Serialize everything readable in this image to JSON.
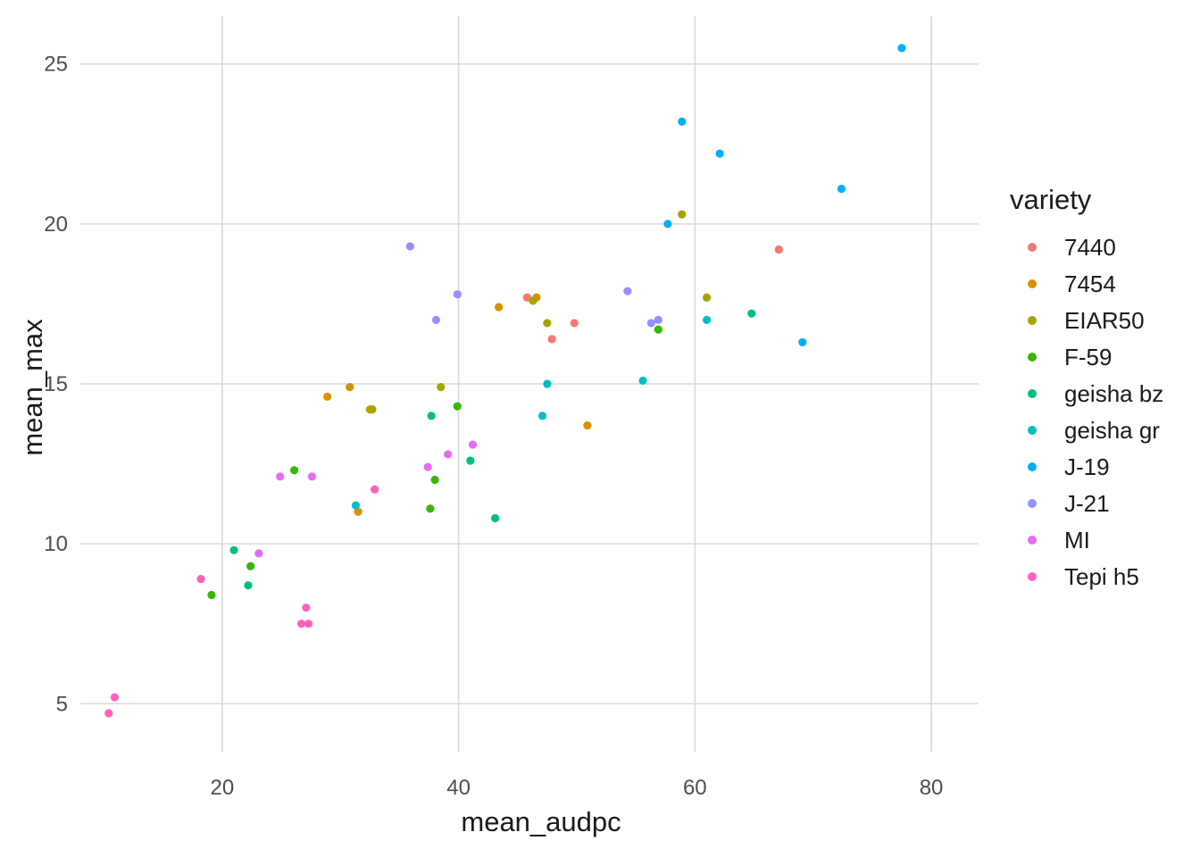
{
  "chart_data": {
    "type": "scatter",
    "title": "",
    "xlabel": "mean_audpc",
    "ylabel": "mean_max",
    "xlim": [
      8,
      84
    ],
    "ylim": [
      3.5,
      26.5
    ],
    "x_ticks": [
      20,
      40,
      60,
      80
    ],
    "y_ticks": [
      5,
      10,
      15,
      20,
      25
    ],
    "x_tick_labels": [
      "20",
      "40",
      "60",
      "80"
    ],
    "y_tick_labels": [
      "5",
      "10",
      "15",
      "20",
      "25"
    ],
    "grid": true,
    "legend_title": "variety",
    "legend_position": "right",
    "series": [
      {
        "name": "7440",
        "color": "#F8766D",
        "points": [
          [
            45.8,
            17.7
          ],
          [
            49.8,
            16.9
          ],
          [
            47.9,
            16.4
          ],
          [
            67.1,
            19.2
          ]
        ]
      },
      {
        "name": "7454",
        "color": "#D89000",
        "points": [
          [
            43.4,
            17.4
          ],
          [
            46.6,
            17.7
          ],
          [
            30.8,
            14.9
          ],
          [
            28.9,
            14.6
          ],
          [
            32.5,
            14.2
          ],
          [
            31.5,
            11.0
          ],
          [
            50.9,
            13.7
          ]
        ]
      },
      {
        "name": "EIAR50",
        "color": "#A3A500",
        "points": [
          [
            58.9,
            20.3
          ],
          [
            61.0,
            17.7
          ],
          [
            47.5,
            16.9
          ],
          [
            46.3,
            17.6
          ],
          [
            38.5,
            14.9
          ],
          [
            32.7,
            14.2
          ]
        ]
      },
      {
        "name": "F-59",
        "color": "#39B600",
        "points": [
          [
            39.9,
            14.3
          ],
          [
            38.0,
            12.0
          ],
          [
            37.6,
            11.1
          ],
          [
            26.1,
            12.3
          ],
          [
            22.4,
            9.3
          ],
          [
            19.1,
            8.4
          ],
          [
            56.9,
            16.7
          ]
        ]
      },
      {
        "name": "geisha bz",
        "color": "#00BF7D",
        "points": [
          [
            37.7,
            14.0
          ],
          [
            41.0,
            12.6
          ],
          [
            43.1,
            10.8
          ],
          [
            21.0,
            9.8
          ],
          [
            22.2,
            8.7
          ],
          [
            64.8,
            17.2
          ]
        ]
      },
      {
        "name": "geisha gr",
        "color": "#00BFC4",
        "points": [
          [
            47.5,
            15.0
          ],
          [
            47.1,
            14.0
          ],
          [
            55.6,
            15.1
          ],
          [
            61.0,
            17.0
          ],
          [
            31.3,
            11.2
          ]
        ]
      },
      {
        "name": "J-19",
        "color": "#00B0F6",
        "points": [
          [
            58.9,
            23.2
          ],
          [
            62.1,
            22.2
          ],
          [
            57.7,
            20.0
          ],
          [
            72.4,
            21.1
          ],
          [
            77.5,
            25.5
          ],
          [
            69.1,
            16.3
          ]
        ]
      },
      {
        "name": "J-21",
        "color": "#9590FF",
        "points": [
          [
            35.9,
            19.3
          ],
          [
            39.9,
            17.8
          ],
          [
            38.1,
            17.0
          ],
          [
            54.3,
            17.9
          ],
          [
            56.3,
            16.9
          ],
          [
            56.9,
            17.0
          ]
        ]
      },
      {
        "name": "MI",
        "color": "#E76BF3",
        "points": [
          [
            41.2,
            13.1
          ],
          [
            39.1,
            12.8
          ],
          [
            37.4,
            12.4
          ],
          [
            24.9,
            12.1
          ],
          [
            27.6,
            12.1
          ],
          [
            23.1,
            9.7
          ]
        ]
      },
      {
        "name": "Tepi h5",
        "color": "#FF62BC",
        "points": [
          [
            10.9,
            5.2
          ],
          [
            10.4,
            4.7
          ],
          [
            18.2,
            8.9
          ],
          [
            27.1,
            8.0
          ],
          [
            26.7,
            7.5
          ],
          [
            27.3,
            7.5
          ],
          [
            32.9,
            11.7
          ]
        ]
      }
    ]
  }
}
